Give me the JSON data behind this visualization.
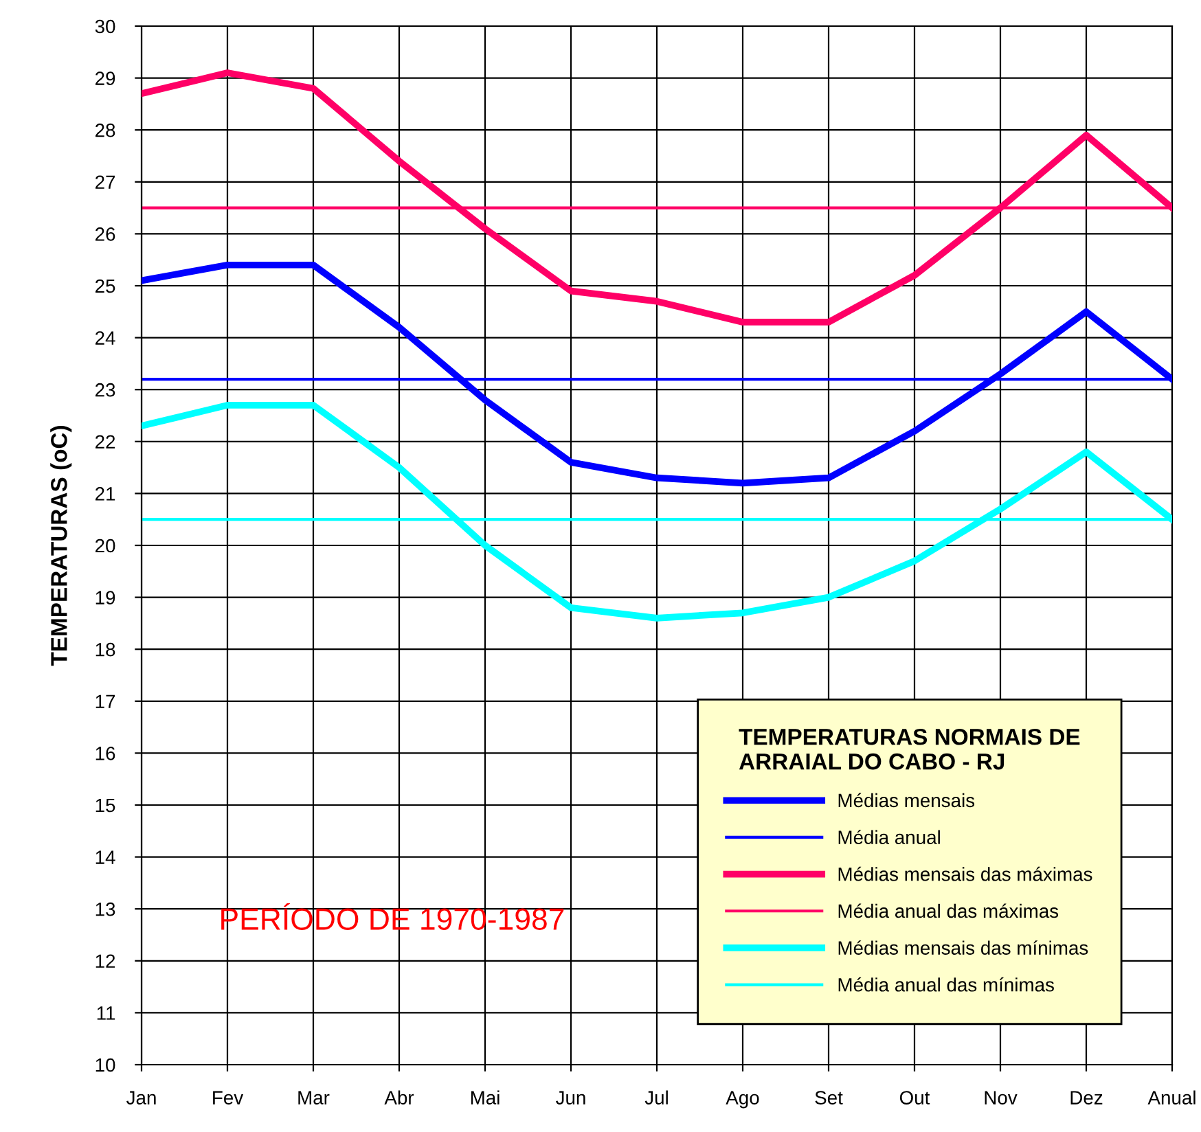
{
  "chart_data": {
    "type": "line",
    "ylabel": "TEMPERATURAS (oC)",
    "legend_title": "TEMPERATURAS NORMAIS DE\nARRAIAL DO CABO - RJ",
    "categories": [
      "Jan",
      "Fev",
      "Mar",
      "Abr",
      "Mai",
      "Jun",
      "Jul",
      "Ago",
      "Set",
      "Out",
      "Nov",
      "Dez",
      "Anual"
    ],
    "series": [
      {
        "name": "Médias mensais",
        "color": "#0000ff",
        "values": [
          25.1,
          25.4,
          25.4,
          24.2,
          22.8,
          21.6,
          21.3,
          21.2,
          21.3,
          22.2,
          23.3,
          24.5,
          23.2
        ]
      },
      {
        "name": "Médias mensais das máximas",
        "color": "#ff0066",
        "values": [
          28.7,
          29.1,
          28.8,
          27.4,
          26.1,
          24.9,
          24.7,
          24.3,
          24.3,
          25.2,
          26.5,
          27.9,
          26.5
        ]
      },
      {
        "name": "Médias mensais das mínimas",
        "color": "#00ffff",
        "values": [
          22.3,
          22.7,
          22.7,
          21.5,
          20.0,
          18.8,
          18.6,
          18.7,
          19.0,
          19.7,
          20.7,
          21.8,
          20.5
        ]
      }
    ],
    "ref_lines": [
      {
        "axis": "y",
        "value": 23.2,
        "label": "Média anual",
        "color": "#0000ff"
      },
      {
        "axis": "y",
        "value": 26.5,
        "label": "Média anual das máximas",
        "color": "#ff0066"
      },
      {
        "axis": "y",
        "value": 20.5,
        "label": "Média anual das mínimas",
        "color": "#00ffff"
      }
    ],
    "ylim": [
      10,
      30
    ],
    "yticks": [
      10,
      11,
      12,
      13,
      14,
      15,
      16,
      17,
      18,
      19,
      20,
      21,
      22,
      23,
      24,
      25,
      26,
      27,
      28,
      29,
      30
    ],
    "grid": true,
    "legend": "bottom right",
    "marker": "none",
    "line_style": "solid",
    "annotations": [
      "PERÍODO DE 1970-1987"
    ]
  }
}
